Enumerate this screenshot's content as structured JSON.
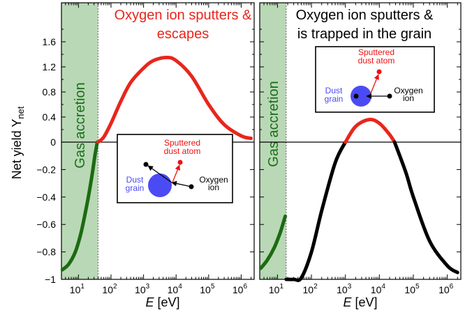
{
  "colors": {
    "sputter_escape": "#e8261c",
    "trapped": "#000000",
    "accretion_curve": "#1b6b12",
    "accretion_band": "#b9d8b5",
    "dust_grain": "#4b4bf5",
    "sputtered_atom": "#ee1111",
    "ion": "#000000"
  },
  "ylabel": "Net yield Y",
  "ylabel_sub": "net",
  "xlabel": "E [eV]",
  "y_ticks": [
    "1.6",
    "1.2",
    "0.8",
    "0.4",
    "0",
    "−0.2",
    "−0.4",
    "−0.6",
    "−0.8",
    "−1"
  ],
  "x_ticks": [
    {
      "base": "10",
      "exp": "1"
    },
    {
      "base": "10",
      "exp": "2"
    },
    {
      "base": "10",
      "exp": "3"
    },
    {
      "base": "10",
      "exp": "4"
    },
    {
      "base": "10",
      "exp": "5"
    },
    {
      "base": "10",
      "exp": "6"
    }
  ],
  "gas_label": "Gas accretion",
  "chart_data": [
    {
      "type": "line",
      "title_lines": [
        "Oxygen ion sputters &",
        "escapes"
      ],
      "xlabel": "E [eV]",
      "ylabel": "Net yield Y_net",
      "x_scale": "log",
      "xlim": [
        3,
        2500000
      ],
      "y_scale": "piecewise-linear (positive half compressed)",
      "ylim": [
        -1,
        1.9
      ],
      "gas_accretion_band": [
        3,
        40
      ],
      "series": [
        {
          "name": "accretion",
          "color": "accretion_curve",
          "points": [
            [
              3.2,
              -0.93
            ],
            [
              5,
              -0.89
            ],
            [
              8,
              -0.8
            ],
            [
              12,
              -0.66
            ],
            [
              18,
              -0.46
            ],
            [
              25,
              -0.27
            ],
            [
              32,
              -0.1
            ],
            [
              38,
              0
            ]
          ]
        },
        {
          "name": "sputter-escape",
          "color": "sputter_escape",
          "points": [
            [
              40,
              0
            ],
            [
              60,
              0.08
            ],
            [
              100,
              0.3
            ],
            [
              200,
              0.65
            ],
            [
              400,
              0.95
            ],
            [
              1000,
              1.18
            ],
            [
              2000,
              1.3
            ],
            [
              5000,
              1.35
            ],
            [
              10000,
              1.3
            ],
            [
              30000,
              1.05
            ],
            [
              100000,
              0.6
            ],
            [
              300000,
              0.28
            ],
            [
              1000000,
              0.1
            ],
            [
              2000000,
              0.06
            ]
          ]
        }
      ],
      "inset": {
        "dust_label": [
          "Dust",
          "grain"
        ],
        "ion_label": [
          "Oxygen",
          "ion"
        ],
        "sputter_label": [
          "Sputtered",
          "dust atom"
        ]
      }
    },
    {
      "type": "line",
      "title_lines": [
        "Oxygen ion sputters &",
        "is trapped in the grain"
      ],
      "xlabel": "E [eV]",
      "x_scale": "log",
      "xlim": [
        3,
        2500000
      ],
      "y_scale": "piecewise-linear (positive half compressed)",
      "ylim": [
        -1,
        1.9
      ],
      "gas_accretion_band": [
        3,
        18
      ],
      "series": [
        {
          "name": "accretion",
          "color": "accretion_curve",
          "points": [
            [
              3.2,
              -0.92
            ],
            [
              5,
              -0.86
            ],
            [
              8,
              -0.77
            ],
            [
              12,
              -0.66
            ],
            [
              16,
              -0.56
            ],
            [
              17,
              -0.54
            ]
          ]
        },
        {
          "name": "net-loss",
          "color": "trapped",
          "points": [
            [
              18,
              -1
            ],
            [
              30,
              -1
            ],
            [
              50,
              -0.99
            ],
            [
              100,
              -0.8
            ],
            [
              200,
              -0.5
            ],
            [
              500,
              -0.15
            ],
            [
              1000,
              0
            ]
          ]
        },
        {
          "name": "sputter-escape",
          "color": "sputter_escape",
          "points": [
            [
              1000,
              0
            ],
            [
              2000,
              0.25
            ],
            [
              5000,
              0.36
            ],
            [
              10000,
              0.3
            ],
            [
              20000,
              0.12
            ],
            [
              28000,
              0
            ]
          ]
        },
        {
          "name": "net-loss-high",
          "color": "trapped",
          "points": [
            [
              28000,
              0
            ],
            [
              60000,
              -0.22
            ],
            [
              100000,
              -0.4
            ],
            [
              300000,
              -0.72
            ],
            [
              1000000,
              -0.9
            ],
            [
              2000000,
              -0.95
            ]
          ]
        }
      ],
      "inset": {
        "dust_label": [
          "Dust",
          "grain"
        ],
        "ion_label": [
          "Oxygen",
          "ion"
        ],
        "sputter_label": [
          "Sputtered",
          "dust atom"
        ]
      }
    }
  ]
}
